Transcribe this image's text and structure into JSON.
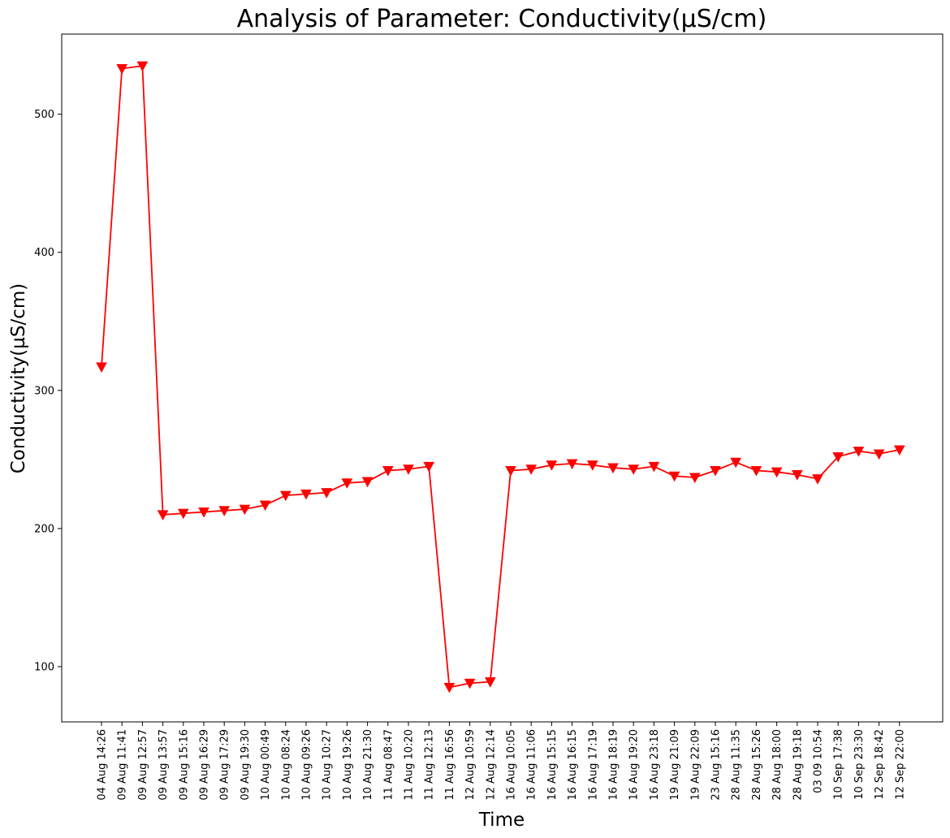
{
  "chart_data": {
    "type": "line",
    "title": "Analysis of Parameter: Conductivity(µS/cm)",
    "xlabel": "Time",
    "ylabel": "Conductivity(µS/cm)",
    "ylim": [
      60,
      558
    ],
    "yticks": [
      100,
      200,
      300,
      400,
      500
    ],
    "grid": false,
    "marker": "triangle-down",
    "colors": {
      "line": "#ff0000",
      "marker": "#ff0000",
      "axes": "#000000"
    },
    "categories": [
      "04 Aug 14:26",
      "09 Aug 11:41",
      "09 Aug 12:57",
      "09 Aug 13:57",
      "09 Aug 15:16",
      "09 Aug 16:29",
      "09 Aug 17:29",
      "09 Aug 19:30",
      "10 Aug 00:49",
      "10 Aug 08:24",
      "10 Aug 09:26",
      "10 Aug 10:27",
      "10 Aug 19:26",
      "10 Aug 21:30",
      "11 Aug 08:47",
      "11 Aug 10:20",
      "11 Aug 12:13",
      "11 Aug 16:56",
      "12 Aug 10:59",
      "12 Aug 12:14",
      "16 Aug 10:05",
      "16 Aug 11:06",
      "16 Aug 15:15",
      "16 Aug 16:15",
      "16 Aug 17:19",
      "16 Aug 18:19",
      "16 Aug 19:20",
      "16 Aug 23:18",
      "19 Aug 21:09",
      "19 Aug 22:09",
      "23 Aug 15:16",
      "28 Aug 11:35",
      "28 Aug 15:26",
      "28 Aug 18:00",
      "28 Aug 19:18",
      "03 09 10:54",
      "10 Sep 17:38",
      "10 Sep 23:30",
      "12 Sep 18:42",
      "12 Sep 22:00"
    ],
    "series": [
      {
        "name": "",
        "values": [
          317,
          533,
          535,
          210,
          211,
          212,
          213,
          214,
          217,
          224,
          225,
          226,
          233,
          234,
          242,
          243,
          245,
          85,
          88,
          89,
          242,
          243,
          246,
          247,
          246,
          244,
          243,
          245,
          238,
          237,
          242,
          248,
          242,
          241,
          239,
          236,
          252,
          256,
          254,
          257
        ]
      }
    ]
  }
}
